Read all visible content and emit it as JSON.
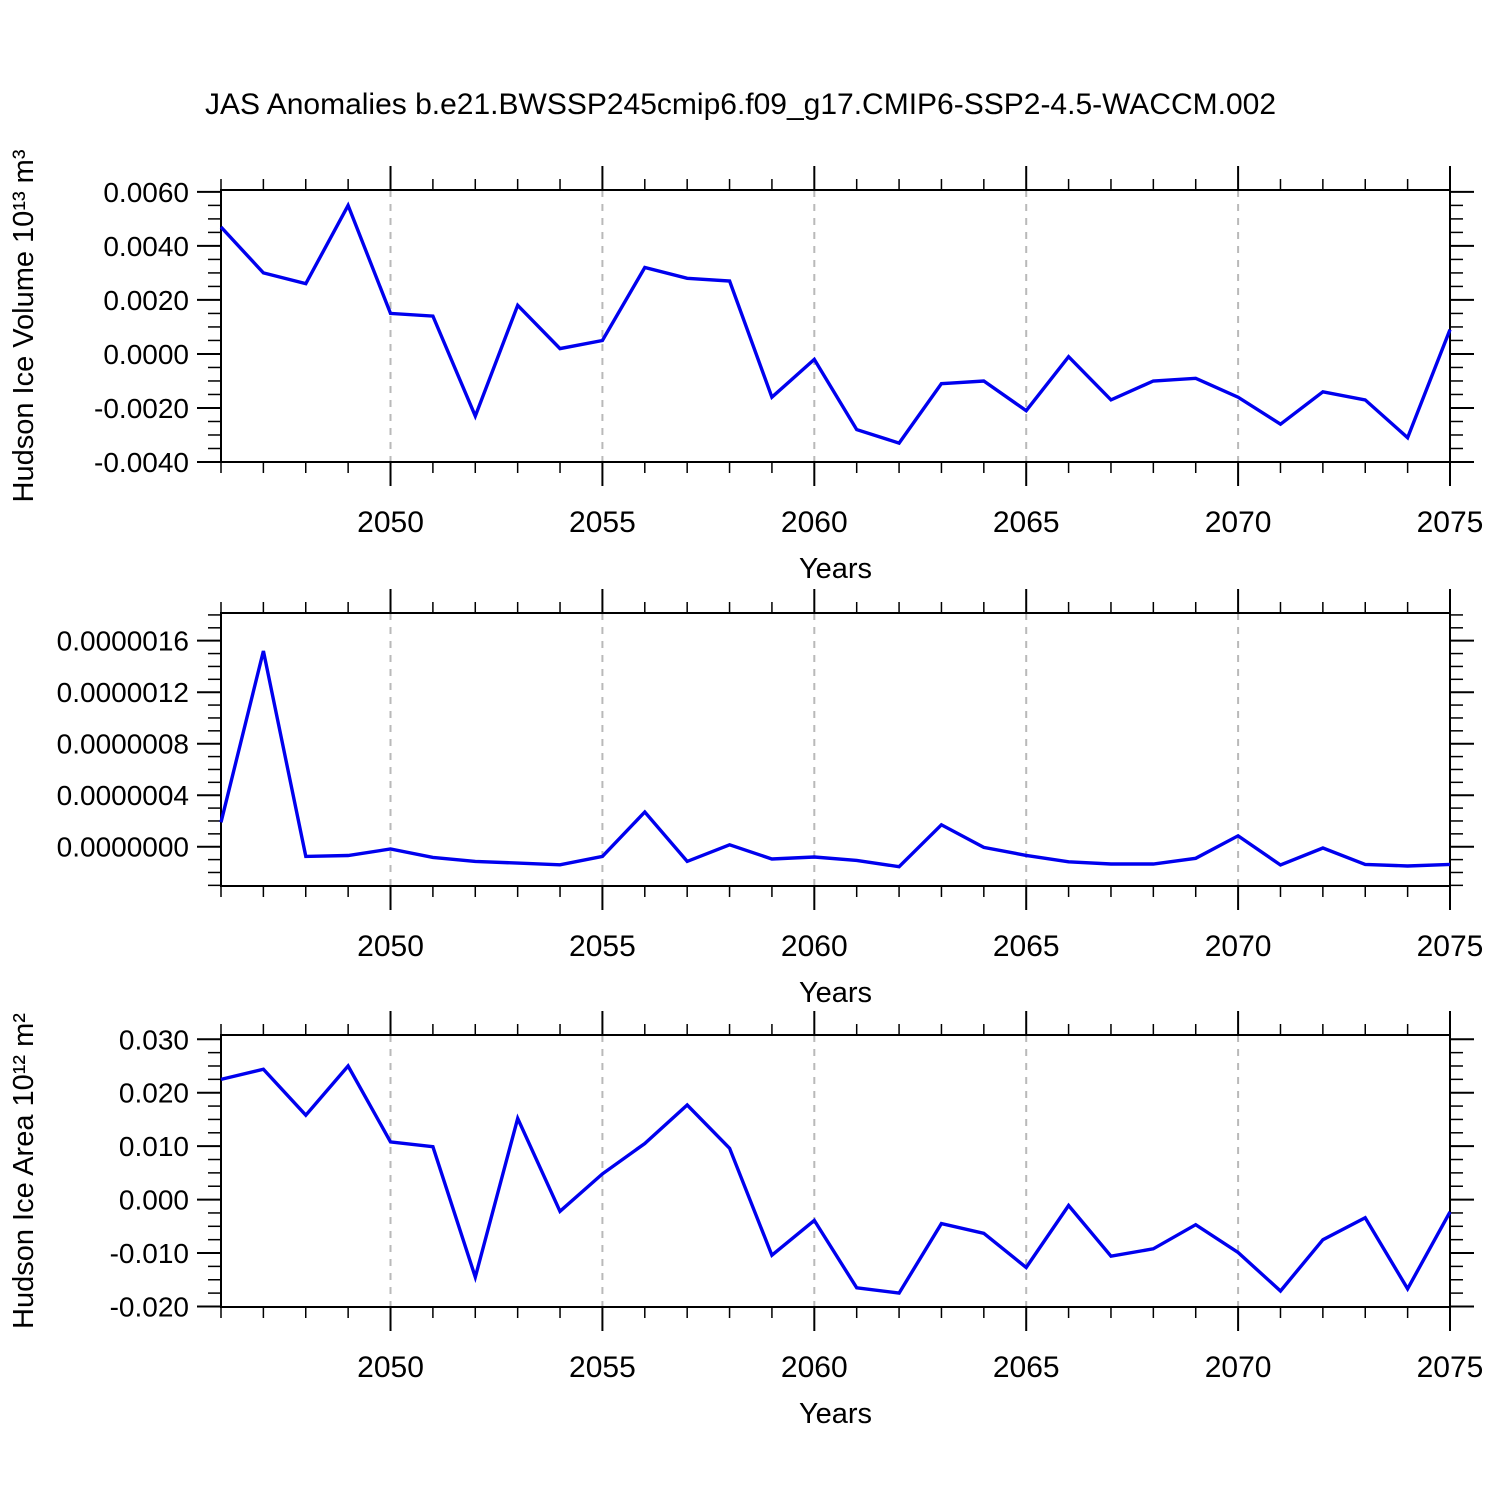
{
  "title": "JAS Anomalies b.e21.BWSSP245cmip6.f09_g17.CMIP6-SSP2-4.5-WACCM.002",
  "xlabel": "Years",
  "colors": {
    "line": "#0000ee",
    "grid": "#b9b9b9",
    "axis": "#000000"
  },
  "x_start": 2046,
  "x_end": 2075,
  "xtick_years": [
    2050,
    2055,
    2060,
    2065,
    2070,
    2075
  ],
  "xtick_labels": [
    "2050",
    "2055",
    "2060",
    "2065",
    "2070",
    "2075"
  ],
  "grid_years": [
    2050,
    2055,
    2060,
    2065,
    2070
  ],
  "chart_data": [
    {
      "type": "line",
      "ylabel": "Hudson Ice Volume 10¹³ m³",
      "x": [
        2046,
        2047,
        2048,
        2049,
        2050,
        2051,
        2052,
        2053,
        2054,
        2055,
        2056,
        2057,
        2058,
        2059,
        2060,
        2061,
        2062,
        2063,
        2064,
        2065,
        2066,
        2067,
        2068,
        2069,
        2070,
        2071,
        2072,
        2073,
        2074,
        2075
      ],
      "values": [
        0.0047,
        0.003,
        0.0026,
        0.0055,
        0.0015,
        0.0014,
        -0.0023,
        0.0018,
        0.0002,
        0.0005,
        0.0032,
        0.0028,
        0.0027,
        -0.0016,
        -0.0002,
        -0.0028,
        -0.0033,
        -0.0011,
        -0.001,
        -0.0021,
        -0.0001,
        -0.0017,
        -0.001,
        -0.0009,
        -0.0016,
        -0.0026,
        -0.0014,
        -0.0017,
        -0.0031,
        0.0009
      ],
      "ylim": [
        -0.004,
        0.00607
      ],
      "ytick_values": [
        0.006,
        0.004,
        0.002,
        0.0,
        -0.002,
        -0.004
      ],
      "ytick_labels": [
        "0.0060",
        "0.0040",
        "0.0020",
        "0.0000",
        "-0.0020",
        "-0.0040"
      ],
      "minor_step": 0.0005,
      "grid": true,
      "legend": "none"
    },
    {
      "type": "line",
      "ylabel": "",
      "x": [
        2046,
        2047,
        2048,
        2049,
        2050,
        2051,
        2052,
        2053,
        2054,
        2055,
        2056,
        2057,
        2058,
        2059,
        2060,
        2061,
        2062,
        2063,
        2064,
        2065,
        2066,
        2067,
        2068,
        2069,
        2070,
        2071,
        2072,
        2073,
        2074,
        2075
      ],
      "values": [
        1.9e-07,
        1.52e-06,
        -7.5e-08,
        -6.8e-08,
        -1.8e-08,
        -8.3e-08,
        -1.14e-07,
        -1.27e-07,
        -1.4e-07,
        -7.5e-08,
        2.7e-07,
        -1.14e-07,
        1.5e-08,
        -9.5e-08,
        -8e-08,
        -1.06e-07,
        -1.55e-07,
        1.7e-07,
        -5e-09,
        -6.7e-08,
        -1.17e-07,
        -1.34e-07,
        -1.34e-07,
        -9e-08,
        8.5e-08,
        -1.42e-07,
        -1e-08,
        -1.37e-07,
        -1.5e-07,
        -1.37e-07
      ],
      "ylim": [
        -3.05e-07,
        1.815e-06
      ],
      "ytick_values": [
        1.6e-06,
        1.2e-06,
        8e-07,
        4e-07,
        0.0
      ],
      "ytick_labels": [
        "0.0000016",
        "0.0000012",
        "0.0000008",
        "0.0000004",
        "0.0000000"
      ],
      "minor_step": 1e-07,
      "grid": true,
      "legend": "none"
    },
    {
      "type": "line",
      "ylabel": "Hudson Ice Area 10¹² m²",
      "x": [
        2046,
        2047,
        2048,
        2049,
        2050,
        2051,
        2052,
        2053,
        2054,
        2055,
        2056,
        2057,
        2058,
        2059,
        2060,
        2061,
        2062,
        2063,
        2064,
        2065,
        2066,
        2067,
        2068,
        2069,
        2070,
        2071,
        2072,
        2073,
        2074,
        2075
      ],
      "values": [
        0.0225,
        0.0244,
        0.0158,
        0.025,
        0.0108,
        0.0099,
        -0.0145,
        0.0152,
        -0.0022,
        0.0048,
        0.0105,
        0.0177,
        0.0096,
        -0.0104,
        -0.0039,
        -0.0165,
        -0.0175,
        -0.0045,
        -0.0063,
        -0.0127,
        -0.0011,
        -0.0106,
        -0.0092,
        -0.0047,
        -0.0099,
        -0.0171,
        -0.0075,
        -0.0034,
        -0.0167,
        -0.0023
      ],
      "ylim": [
        -0.0201,
        0.0308
      ],
      "ytick_values": [
        0.03,
        0.02,
        0.01,
        0.0,
        -0.01,
        -0.02
      ],
      "ytick_labels": [
        "0.030",
        "0.020",
        "0.010",
        "0.000",
        "-0.010",
        "-0.020"
      ],
      "minor_step": 0.0025,
      "grid": true,
      "legend": "none"
    }
  ]
}
